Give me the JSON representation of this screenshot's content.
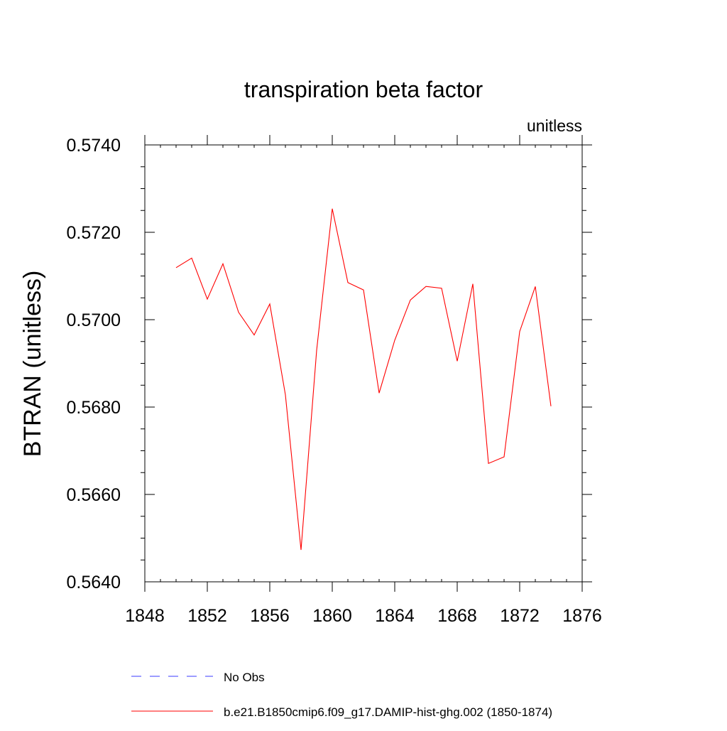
{
  "chart_data": {
    "type": "line",
    "title": "transpiration beta factor",
    "units_label": "unitless",
    "ylabel": "BTRAN  (unitless)",
    "xlabel": "",
    "xlim": [
      1848,
      1876
    ],
    "ylim": [
      0.564,
      0.574
    ],
    "x_ticks": [
      1848,
      1852,
      1856,
      1860,
      1864,
      1868,
      1872,
      1876
    ],
    "x_tick_labels": [
      "1848",
      "1852",
      "1856",
      "1860",
      "1864",
      "1868",
      "1872",
      "1876"
    ],
    "y_ticks": [
      0.564,
      0.566,
      0.568,
      0.57,
      0.572,
      0.574
    ],
    "y_tick_labels": [
      "0.5640",
      "0.5660",
      "0.5680",
      "0.5700",
      "0.5720",
      "0.5740"
    ],
    "grid": false,
    "legend_position": "bottom",
    "series": [
      {
        "name": "No Obs",
        "color": "#3b3bff",
        "dash": "dashed",
        "x": [],
        "values": []
      },
      {
        "name": "b.e21.B1850cmip6.f09_g17.DAMIP-hist-ghg.002 (1850-1874)",
        "color": "#ff0000",
        "dash": "solid",
        "x": [
          1850,
          1851,
          1852,
          1853,
          1854,
          1855,
          1856,
          1857,
          1858,
          1859,
          1860,
          1861,
          1862,
          1863,
          1864,
          1865,
          1866,
          1867,
          1868,
          1869,
          1870,
          1871,
          1872,
          1873,
          1874
        ],
        "values": [
          0.57119,
          0.57141,
          0.57047,
          0.57128,
          0.57017,
          0.56965,
          0.57036,
          0.56828,
          0.56473,
          0.5693,
          0.57254,
          0.57085,
          0.57068,
          0.56832,
          0.56953,
          0.57045,
          0.57076,
          0.57072,
          0.56905,
          0.57082,
          0.56671,
          0.56686,
          0.56973,
          0.57076,
          0.56802
        ]
      }
    ]
  }
}
